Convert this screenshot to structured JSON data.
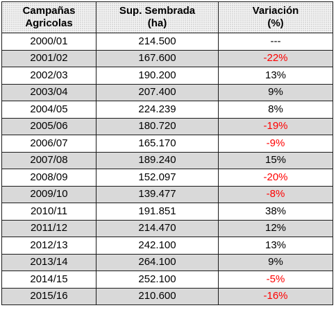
{
  "table": {
    "headers": [
      {
        "line1": "Campañas",
        "line2": "Agricolas"
      },
      {
        "line1": "Sup. Sembrada",
        "line2": "(ha)"
      },
      {
        "line1": "Variación",
        "line2": "(%)"
      }
    ],
    "rows": [
      {
        "campaign": "2000/01",
        "area": "214.500",
        "variation": "---",
        "negative": false,
        "shaded": false
      },
      {
        "campaign": "2001/02",
        "area": "167.600",
        "variation": "-22%",
        "negative": true,
        "shaded": true
      },
      {
        "campaign": "2002/03",
        "area": "190.200",
        "variation": "13%",
        "negative": false,
        "shaded": false
      },
      {
        "campaign": "2003/04",
        "area": "207.400",
        "variation": "9%",
        "negative": false,
        "shaded": true
      },
      {
        "campaign": "2004/05",
        "area": "224.239",
        "variation": "8%",
        "negative": false,
        "shaded": false
      },
      {
        "campaign": "2005/06",
        "area": "180.720",
        "variation": "-19%",
        "negative": true,
        "shaded": true
      },
      {
        "campaign": "2006/07",
        "area": "165.170",
        "variation": "-9%",
        "negative": true,
        "shaded": false
      },
      {
        "campaign": "2007/08",
        "area": "189.240",
        "variation": "15%",
        "negative": false,
        "shaded": true
      },
      {
        "campaign": "2008/09",
        "area": "152.097",
        "variation": "-20%",
        "negative": true,
        "shaded": false
      },
      {
        "campaign": "2009/10",
        "area": "139.477",
        "variation": "-8%",
        "negative": true,
        "shaded": true
      },
      {
        "campaign": "2010/11",
        "area": "191.851",
        "variation": "38%",
        "negative": false,
        "shaded": false
      },
      {
        "campaign": "2011/12",
        "area": "214.470",
        "variation": "12%",
        "negative": false,
        "shaded": true
      },
      {
        "campaign": "2012/13",
        "area": "242.100",
        "variation": "13%",
        "negative": false,
        "shaded": false
      },
      {
        "campaign": "2013/14",
        "area": "264.100",
        "variation": "9%",
        "negative": false,
        "shaded": true
      },
      {
        "campaign": "2014/15",
        "area": "252.100",
        "variation": "-5%",
        "negative": true,
        "shaded": false
      },
      {
        "campaign": "2015/16",
        "area": "210.600",
        "variation": "-16%",
        "negative": true,
        "shaded": true
      }
    ]
  },
  "colors": {
    "negative_text": "#ff0000",
    "shaded_row": "#d9d9d9",
    "border": "#1a1a1a"
  }
}
